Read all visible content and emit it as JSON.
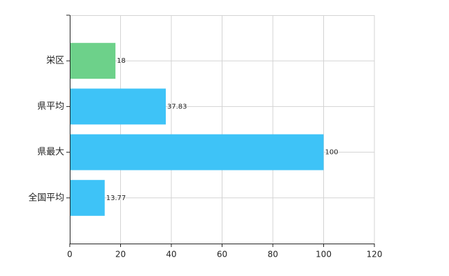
{
  "chart_data": {
    "type": "barh",
    "categories": [
      "栄区",
      "県平均",
      "県最大",
      "全国平均"
    ],
    "values": [
      18,
      37.83,
      100,
      13.77
    ],
    "colors": [
      "#6dd18a",
      "#3ec3f7",
      "#3ec3f7",
      "#3ec3f7"
    ],
    "xlim": [
      0,
      120
    ],
    "xticks": [
      0,
      20,
      40,
      60,
      80,
      100,
      120
    ],
    "grid": true
  }
}
